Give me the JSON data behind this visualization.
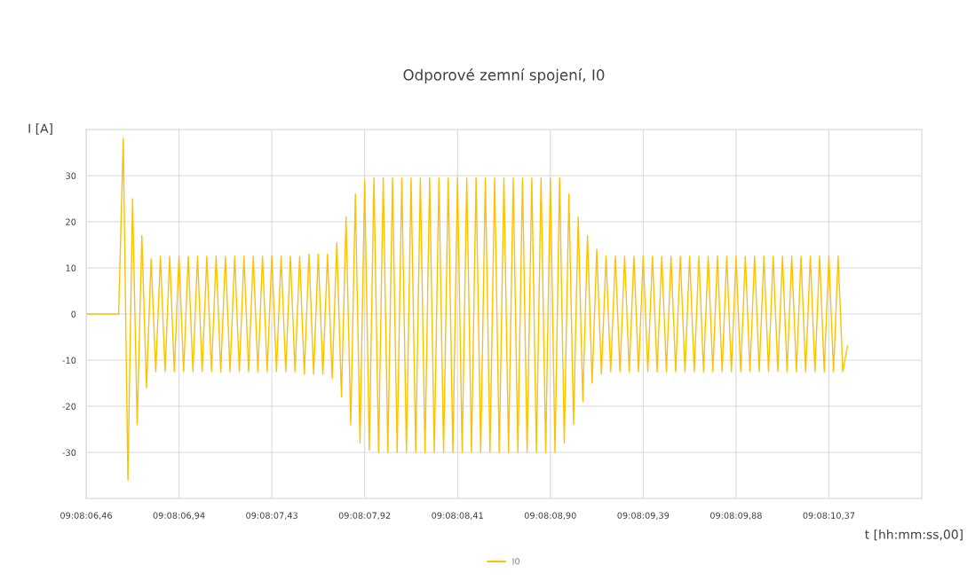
{
  "chart_data": {
    "type": "line",
    "title": "Odporové zemní spojení, I0",
    "xlabel": "t [hh:mm:ss,00]",
    "ylabel": "I [A]",
    "ylim": [
      -40,
      40
    ],
    "yticks": [
      {
        "value": -40,
        "label": null
      },
      -30,
      -20,
      -10,
      0,
      10,
      20,
      30,
      {
        "value": 40,
        "label": null
      }
    ],
    "grid": true,
    "legend": "bottom",
    "marker": "none",
    "line_style": "solid",
    "categories": [
      "09:08:06,46",
      null,
      null,
      null,
      null,
      null,
      null,
      null,
      null,
      null,
      null,
      null,
      null,
      null,
      null,
      null,
      null,
      null,
      null,
      null,
      "09:08:06,94",
      null,
      null,
      null,
      null,
      null,
      null,
      null,
      null,
      null,
      null,
      null,
      null,
      null,
      null,
      null,
      null,
      null,
      null,
      null,
      "09:08:07,43",
      null,
      null,
      null,
      null,
      null,
      null,
      null,
      null,
      null,
      null,
      null,
      null,
      null,
      null,
      null,
      null,
      null,
      null,
      null,
      "09:08:07,92",
      null,
      null,
      null,
      null,
      null,
      null,
      null,
      null,
      null,
      null,
      null,
      null,
      null,
      null,
      null,
      null,
      null,
      null,
      null,
      "09:08:08,41",
      null,
      null,
      null,
      null,
      null,
      null,
      null,
      null,
      null,
      null,
      null,
      null,
      null,
      null,
      null,
      null,
      null,
      null,
      null,
      "09:08:08,90",
      null,
      null,
      null,
      null,
      null,
      null,
      null,
      null,
      null,
      null,
      null,
      null,
      null,
      null,
      null,
      null,
      null,
      null,
      null,
      "09:08:09,39",
      null,
      null,
      null,
      null,
      null,
      null,
      null,
      null,
      null,
      null,
      null,
      null,
      null,
      null,
      null,
      null,
      null,
      null,
      null,
      "09:08:09,88",
      null,
      null,
      null,
      null,
      null,
      null,
      null,
      null,
      null,
      null,
      null,
      null,
      null,
      null,
      null,
      null,
      null,
      null,
      null,
      "09:08:10,37",
      null,
      null,
      null,
      null,
      null,
      null,
      null,
      null,
      null,
      null,
      null,
      null,
      null,
      null,
      null,
      null,
      null,
      null,
      null,
      null
    ],
    "series": [
      {
        "name": "I0",
        "color": "#ffc000",
        "values": [
          0,
          0,
          0,
          0,
          0,
          0,
          0,
          0,
          38,
          -36,
          25,
          -24,
          17,
          -16,
          12,
          -12.5,
          12.5,
          -12.5,
          12.5,
          -12.5,
          12.5,
          -12.5,
          12.5,
          -12.5,
          12.5,
          -12.5,
          12.5,
          -12.5,
          12.5,
          -12.5,
          12.5,
          -12.5,
          12.5,
          -12.5,
          12.5,
          -12.5,
          12.5,
          -12.5,
          12.5,
          -12.5,
          12.5,
          -12.5,
          12.5,
          -12.5,
          12.5,
          -12.5,
          12.5,
          -13,
          13,
          -13,
          13,
          -13,
          13,
          -14,
          15.5,
          -18,
          21,
          -24,
          26,
          -28,
          29,
          -29.5,
          29.5,
          -30,
          29.5,
          -30,
          29.5,
          -30,
          29.5,
          -30,
          29.5,
          -30,
          29.5,
          -30,
          29.5,
          -30,
          29.5,
          -30,
          29.5,
          -30,
          29.5,
          -30,
          29.5,
          -30,
          29.5,
          -30,
          29.5,
          -30,
          29.5,
          -30,
          29.5,
          -30,
          29.5,
          -30,
          29.5,
          -30,
          29.5,
          -30,
          29.5,
          -30,
          29.5,
          -30,
          29.5,
          -28,
          26,
          -24,
          21,
          -19,
          17,
          -15,
          14,
          -13,
          12.5,
          -12.5,
          12.5,
          -12.5,
          12.5,
          -12.5,
          12.5,
          -12.5,
          12.5,
          -12.5,
          12.5,
          -12.5,
          12.5,
          -12.5,
          12.5,
          -12.5,
          12.5,
          -12.5,
          12.5,
          -12.5,
          12.5,
          -12.5,
          12.5,
          -12.5,
          12.5,
          -12.5,
          12.5,
          -12.5,
          12.5,
          -12.5,
          12.5,
          -12.5,
          12.5,
          -12.5,
          12.5,
          -12.5,
          12.5,
          -12.5,
          12.5,
          -12.5,
          12.5,
          -12.5,
          12.5,
          -12.5,
          12.5,
          -12.5,
          12.5,
          -12.5,
          12.5,
          -12.5,
          12.5,
          -12.5,
          -7,
          null,
          null,
          null,
          null,
          null,
          null,
          null,
          null,
          null,
          null,
          null,
          null,
          null,
          null,
          null,
          null
        ]
      }
    ]
  }
}
